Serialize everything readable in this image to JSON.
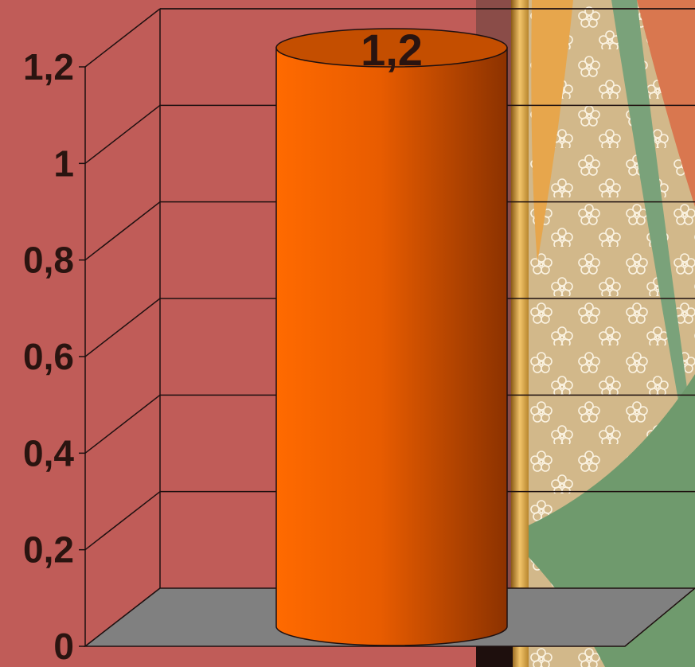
{
  "chart_data": {
    "type": "bar",
    "style": "3d-cylinder",
    "categories": [
      ""
    ],
    "values": [
      1.2
    ],
    "data_labels": [
      "1,2"
    ],
    "ylim": [
      0,
      1.2
    ],
    "yticks": [
      0,
      0.2,
      0.4,
      0.6,
      0.8,
      1,
      1.2
    ],
    "ytick_labels": [
      "0",
      "0,2",
      "0,4",
      "0,6",
      "0,8",
      "1",
      "1,2"
    ],
    "grid": true,
    "legend": "none",
    "title": "",
    "xlabel": "",
    "ylabel": "",
    "colors": {
      "bar_light": "#ff6a00",
      "bar_dark": "#8c3200",
      "bar_top": "#c44e00",
      "floor": "#808080",
      "grid": "#1e1010",
      "slide_background": "#c05c58",
      "wallpaper": "#d2b88a"
    }
  }
}
